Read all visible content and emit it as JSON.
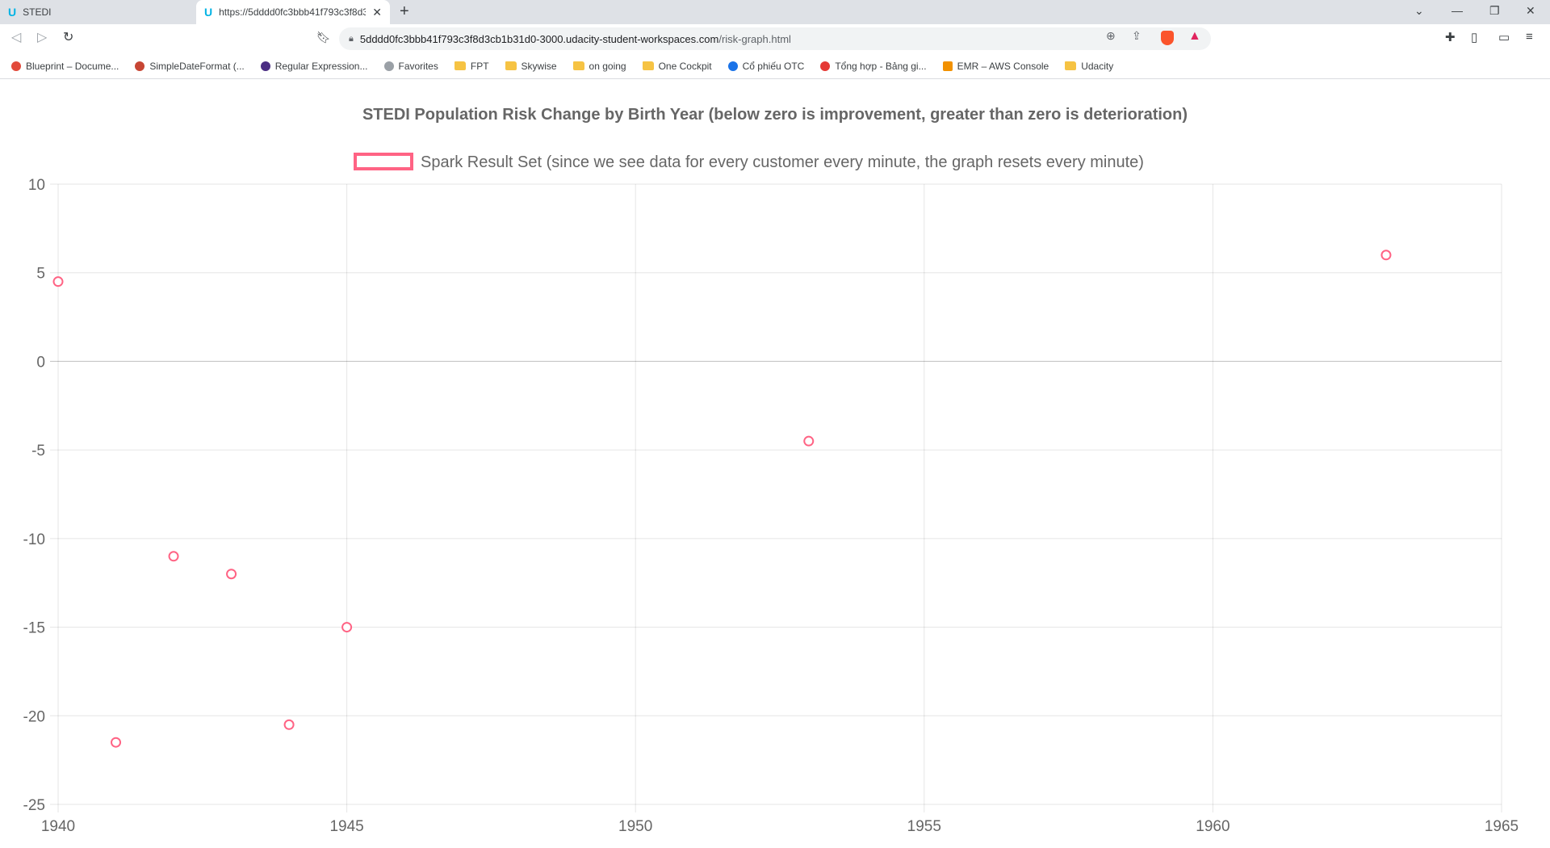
{
  "browser": {
    "tabs": [
      {
        "label": "STEDI",
        "active": false
      },
      {
        "label": "https://5dddd0fc3bbb41f793c3f8d3cb1b31d0-3000",
        "active": true
      }
    ],
    "address": {
      "host": "5dddd0fc3bbb41f793c3f8d3cb1b31d0-3000.udacity-student-workspaces.com",
      "path": "/risk-graph.html"
    },
    "bookmarks": [
      {
        "label": "Blueprint – Docume...",
        "icon": "blueprint-icon",
        "color": "#e24a3b"
      },
      {
        "label": "SimpleDateFormat (...",
        "icon": "oracle-icon",
        "color": "#c74634"
      },
      {
        "label": "Regular Expression...",
        "icon": "regex-icon",
        "color": "#4b2e83"
      },
      {
        "label": "Favorites",
        "icon": "star-icon",
        "color": "#9aa0a6"
      },
      {
        "label": "FPT",
        "icon": "folder-icon",
        "color": "#f6c343"
      },
      {
        "label": "Skywise",
        "icon": "folder-icon",
        "color": "#f6c343"
      },
      {
        "label": "on going",
        "icon": "folder-icon",
        "color": "#f6c343"
      },
      {
        "label": "One Cockpit",
        "icon": "folder-icon",
        "color": "#f6c343"
      },
      {
        "label": "Cổ phiếu OTC",
        "icon": "globe-icon",
        "color": "#1a73e8"
      },
      {
        "label": "Tổng hợp - Bảng gi...",
        "icon": "site-icon",
        "color": "#e53935"
      },
      {
        "label": "EMR – AWS Console",
        "icon": "aws-icon",
        "color": "#f29100"
      },
      {
        "label": "Udacity",
        "icon": "folder-icon",
        "color": "#f6c343"
      }
    ]
  },
  "chart_data": {
    "type": "scatter",
    "title": "STEDI Population Risk Change by Birth Year (below zero is improvement, greater than zero is deterioration)",
    "legend": "top",
    "series": [
      {
        "name": "Spark Result Set (since we see data for every customer every minute, the graph resets every minute)",
        "color": "#ff6384",
        "points": [
          {
            "x": 1940,
            "y": 4.5
          },
          {
            "x": 1941,
            "y": -21.5
          },
          {
            "x": 1942,
            "y": -11
          },
          {
            "x": 1943,
            "y": -12
          },
          {
            "x": 1944,
            "y": -20.5
          },
          {
            "x": 1945,
            "y": -15
          },
          {
            "x": 1953,
            "y": -4.5
          },
          {
            "x": 1963,
            "y": 6
          }
        ]
      }
    ],
    "xlim": [
      1940,
      1965
    ],
    "ylim": [
      -25,
      10
    ],
    "xticks": [
      "1940",
      "1945",
      "1950",
      "1955",
      "1960",
      "1965"
    ],
    "yticks": [
      "10",
      "5",
      "0",
      "-5",
      "-10",
      "-15",
      "-20",
      "-25"
    ],
    "grid": true
  }
}
